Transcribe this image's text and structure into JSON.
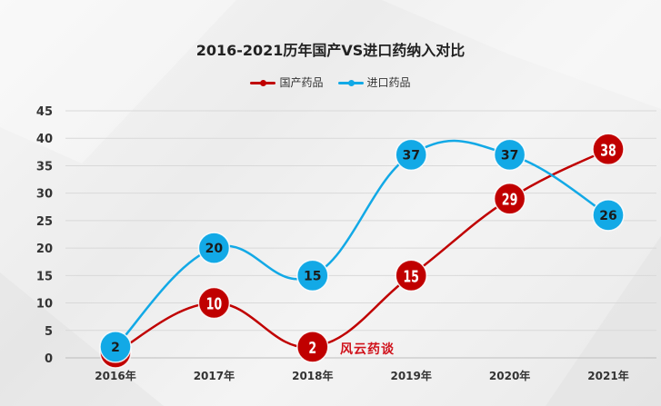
{
  "chart_data": {
    "type": "line",
    "title": "2016-2021历年国产VS进口药纳入对比",
    "categories": [
      "2016年",
      "2017年",
      "2018年",
      "2019年",
      "2020年",
      "2021年"
    ],
    "series": [
      {
        "name": "国产药品",
        "values": [
          1,
          10,
          2,
          15,
          29,
          38
        ],
        "color": "#c00000"
      },
      {
        "name": "进口药品",
        "values": [
          2,
          20,
          15,
          37,
          37,
          26
        ],
        "color": "#12a9e6"
      }
    ],
    "ylim": [
      0,
      45
    ],
    "yticks": [
      0,
      5,
      10,
      15,
      20,
      25,
      30,
      35,
      40,
      45
    ],
    "grid": true,
    "legend": "top-center",
    "smooth": true
  },
  "watermark": "风云药谈"
}
